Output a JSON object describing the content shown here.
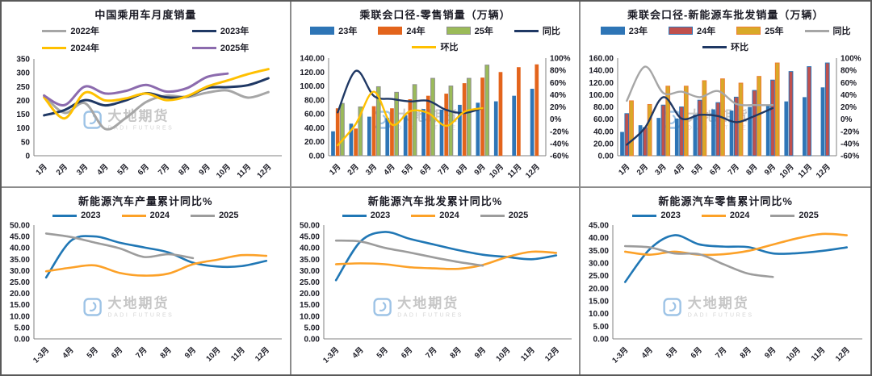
{
  "watermark": {
    "cn": "大地期货",
    "en": "DADI FUTURES"
  },
  "chart_data": [
    {
      "id": "cpca-monthly-sales",
      "type": "line",
      "title": "中国乘用车月度销量",
      "legend_cols": 2,
      "x_labels": [
        "1月",
        "2月",
        "3月",
        "4月",
        "5月",
        "6月",
        "7月",
        "8月",
        "9月",
        "10月",
        "11月",
        "12月"
      ],
      "y_axis": {
        "min": 0,
        "max": 350,
        "step": 50,
        "format": "int"
      },
      "series": [
        {
          "name": "2022年",
          "color": "#A6A6A6",
          "values": [
            218,
            155,
            190,
            97,
            136,
            194,
            217,
            212,
            228,
            236,
            210,
            230
          ]
        },
        {
          "name": "2023年",
          "color": "#1F3864",
          "values": [
            146,
            165,
            201,
            182,
            200,
            226,
            211,
            214,
            245,
            248,
            255,
            280
          ]
        },
        {
          "name": "2024年",
          "color": "#FFC000",
          "values": [
            211,
            135,
            228,
            200,
            207,
            225,
            201,
            215,
            250,
            272,
            295,
            313
          ]
        },
        {
          "name": "2025年",
          "color": "#8C6BAE",
          "values": [
            217,
            183,
            250,
            225,
            234,
            256,
            232,
            244,
            285,
            297
          ]
        }
      ]
    },
    {
      "id": "cpca-nev-retail",
      "type": "combo",
      "title": "乘联会口径-零售销量（万辆）",
      "x_labels": [
        "1月",
        "2月",
        "3月",
        "4月",
        "5月",
        "6月",
        "7月",
        "8月",
        "9月",
        "10月",
        "11月",
        "12月"
      ],
      "left_axis": {
        "min": 0,
        "max": 140,
        "step": 20,
        "format": "2dp"
      },
      "right_axis": {
        "min": -60,
        "max": 100,
        "step": 20,
        "format": "pct"
      },
      "bars": [
        {
          "name": "23年",
          "color": "#2E75B6",
          "values": [
            35,
            46,
            56,
            54,
            58,
            67,
            66,
            73,
            76,
            78,
            86,
            96
          ]
        },
        {
          "name": "24年",
          "color": "#E3641C",
          "values": [
            68,
            39,
            71,
            68,
            81,
            86,
            89,
            104,
            112,
            120,
            127,
            131
          ]
        },
        {
          "name": "25年",
          "color": "#9BBB59",
          "border": "#8C8C8C",
          "values": [
            75,
            70,
            99,
            91,
            102,
            111,
            100,
            111,
            130
          ]
        }
      ],
      "lines": [
        {
          "name": "同比",
          "color": "#1F3864",
          "values": [
            11,
            79,
            38,
            33,
            29,
            30,
            15,
            10,
            18
          ]
        },
        {
          "name": "环比",
          "color": "#FFC000",
          "values": [
            -43,
            -8,
            45,
            -9,
            13,
            10,
            -11,
            12,
            18
          ]
        }
      ]
    },
    {
      "id": "cpca-nev-wholesale",
      "type": "combo",
      "title": "乘联会口径-新能源车批发销量（万辆）",
      "x_labels": [
        "1月",
        "2月",
        "3月",
        "4月",
        "5月",
        "6月",
        "7月",
        "8月",
        "9月",
        "10月",
        "11月",
        "12月"
      ],
      "left_axis": {
        "min": 0,
        "max": 160,
        "step": 20,
        "format": "2dp"
      },
      "right_axis": {
        "min": -60,
        "max": 100,
        "step": 20,
        "format": "pct"
      },
      "bars": [
        {
          "name": "23年",
          "color": "#2E75B6",
          "values": [
            39,
            50,
            62,
            61,
            67,
            76,
            74,
            80,
            83,
            89,
            96,
            112
          ]
        },
        {
          "name": "24年",
          "color": "#C0504D",
          "border": "#2E75B6",
          "values": [
            69,
            46,
            83,
            80,
            91,
            87,
            96,
            107,
            124,
            138,
            146,
            152
          ]
        },
        {
          "name": "25年",
          "color": "#D9A928",
          "border": "#ED7D31",
          "values": [
            90,
            84,
            114,
            114,
            123,
            126,
            119,
            130,
            152
          ]
        }
      ],
      "lines": [
        {
          "name": "同比",
          "color": "#A6A6A6",
          "values": [
            30,
            86,
            43,
            45,
            36,
            46,
            25,
            23,
            23
          ]
        },
        {
          "name": "环比",
          "color": "#1F3864",
          "values": [
            -42,
            -14,
            36,
            1,
            7,
            5,
            -5,
            5,
            18
          ]
        }
      ]
    },
    {
      "id": "nev-production-ytd-yoy",
      "type": "line",
      "title": "新能源汽车产量累计同比%",
      "legend_cols": 3,
      "x_labels": [
        "1-3月",
        "4月",
        "5月",
        "6月",
        "7月",
        "8月",
        "9月",
        "10月",
        "11月",
        "12月"
      ],
      "y_axis": {
        "min": 0,
        "max": 50,
        "step": 5,
        "format": "2dp"
      },
      "series": [
        {
          "name": "2023",
          "color": "#2077B5",
          "values": [
            27,
            43,
            45,
            42.3,
            40.2,
            38,
            33.5,
            31.8,
            32,
            34.3
          ]
        },
        {
          "name": "2024",
          "color": "#FCA128",
          "values": [
            29.7,
            31.3,
            32.3,
            29,
            27.8,
            28.7,
            32.8,
            34.8,
            36.8,
            36.5
          ]
        },
        {
          "name": "2025",
          "color": "#9C9C9C",
          "values": [
            46.3,
            44.8,
            42.3,
            39.8,
            36,
            37.2,
            35.5
          ]
        }
      ]
    },
    {
      "id": "nev-wholesale-ytd-yoy",
      "type": "line",
      "title": "新能源汽车批发累计同比%",
      "legend_cols": 3,
      "x_labels": [
        "1-3月",
        "4月",
        "5月",
        "6月",
        "7月",
        "8月",
        "9月",
        "10月",
        "11月",
        "12月"
      ],
      "y_axis": {
        "min": 0,
        "max": 50,
        "step": 5,
        "format": "2dp"
      },
      "series": [
        {
          "name": "2023",
          "color": "#2077B5",
          "values": [
            25.8,
            42.8,
            47,
            44,
            41.5,
            39,
            37,
            36,
            35,
            36.7
          ]
        },
        {
          "name": "2024",
          "color": "#FCA128",
          "values": [
            32.8,
            33.2,
            32.8,
            31.5,
            31,
            30.8,
            32.5,
            36,
            38.3,
            37.8
          ]
        },
        {
          "name": "2025",
          "color": "#9C9C9C",
          "values": [
            43.2,
            42.8,
            40,
            38,
            35.8,
            33.8,
            32.2
          ]
        }
      ]
    },
    {
      "id": "nev-retail-ytd-yoy",
      "type": "line",
      "title": "新能源汽车零售累计同比%",
      "legend_cols": 3,
      "x_labels": [
        "1-3月",
        "4月",
        "5月",
        "6月",
        "7月",
        "8月",
        "9月",
        "10月",
        "11月",
        "12月"
      ],
      "y_axis": {
        "min": 0,
        "max": 45,
        "step": 5,
        "format": "2dp"
      },
      "series": [
        {
          "name": "2023",
          "color": "#2077B5",
          "values": [
            22.5,
            35.5,
            41,
            37.4,
            36.5,
            36.3,
            33.8,
            33.9,
            34.8,
            36.2
          ]
        },
        {
          "name": "2024",
          "color": "#FCA128",
          "values": [
            34.5,
            33.3,
            34.5,
            33.3,
            33.5,
            34.8,
            37.3,
            39.8,
            41.5,
            41
          ]
        },
        {
          "name": "2025",
          "color": "#9C9C9C",
          "values": [
            36.7,
            36.2,
            33.8,
            33.5,
            29.5,
            25.8,
            24.5
          ]
        }
      ]
    }
  ]
}
